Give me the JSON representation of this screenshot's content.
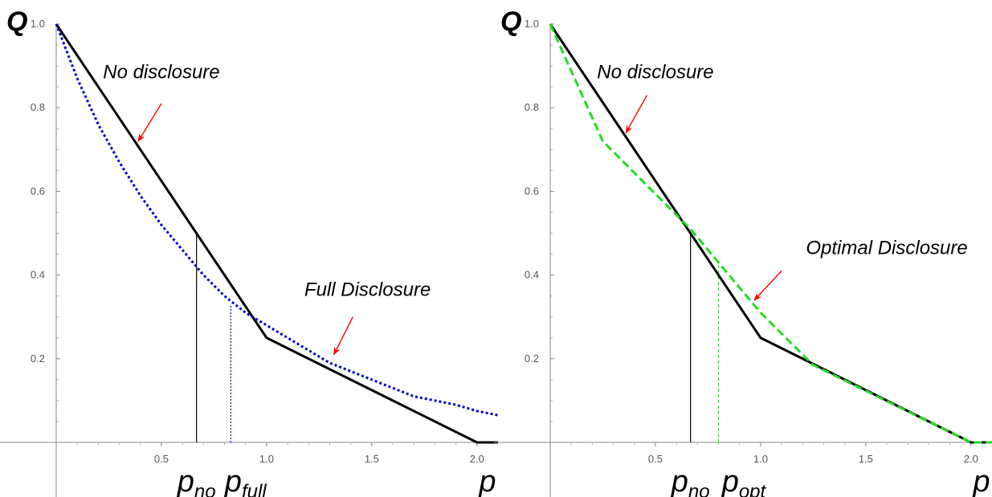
{
  "chart_data": [
    {
      "type": "line",
      "xlabel": "p",
      "ylabel": "Q",
      "xlim": [
        0,
        2.1
      ],
      "ylim": [
        -0.11,
        1.0
      ],
      "x_ticks": [
        0.5,
        1.0,
        1.5,
        2.0
      ],
      "x_tick_labels": [
        "0.5",
        "1.0",
        "1.5",
        "2.0"
      ],
      "y_ticks": [
        0.2,
        0.4,
        0.6,
        0.8,
        1.0
      ],
      "y_tick_labels": [
        "0.2",
        "0.4",
        "0.6",
        "0.8",
        "1.0"
      ],
      "grid": false,
      "series": [
        {
          "name": "No disclosure",
          "style": "solid",
          "color": "#000000",
          "x": [
            0,
            1.0,
            2.0,
            2.1
          ],
          "y": [
            1.0,
            0.25,
            0.0,
            0.0
          ]
        },
        {
          "name": "Full Disclosure",
          "style": "dotted",
          "color": "#0000cc",
          "x": [
            0,
            0.1,
            0.2,
            0.3,
            0.4,
            0.5,
            0.6,
            0.7,
            0.8,
            0.9,
            1.0,
            1.1,
            1.2,
            1.3,
            1.4,
            1.5,
            1.6,
            1.7,
            1.8,
            1.9,
            2.0,
            2.1
          ],
          "y": [
            1.0,
            0.87,
            0.76,
            0.67,
            0.59,
            0.52,
            0.46,
            0.4,
            0.35,
            0.31,
            0.28,
            0.25,
            0.22,
            0.19,
            0.17,
            0.15,
            0.13,
            0.11,
            0.1,
            0.09,
            0.075,
            0.065
          ]
        }
      ],
      "vlines": [
        {
          "label": "p_no",
          "x": 0.667,
          "y_top": 0.5,
          "color": "#000000",
          "style": "solid"
        },
        {
          "label": "p_full",
          "x": 0.83,
          "y_top": 0.33,
          "color": "#0000cc",
          "style": "dotted"
        }
      ],
      "marker_labels": [
        {
          "main": "p",
          "sub": "no",
          "x": 0.667
        },
        {
          "main": "p",
          "sub": "full",
          "x": 0.9
        },
        {
          "main": "p",
          "sub": "",
          "x": 2.05
        }
      ],
      "annotations": [
        {
          "text": "No disclosure",
          "text_x": 0.5,
          "text_y": 0.87,
          "arrow_from": [
            0.5,
            0.81
          ],
          "arrow_to": [
            0.39,
            0.72
          ]
        },
        {
          "text": "Full Disclosure",
          "text_x": 1.48,
          "text_y": 0.35,
          "arrow_from": [
            1.41,
            0.3
          ],
          "arrow_to": [
            1.32,
            0.21
          ]
        }
      ]
    },
    {
      "type": "line",
      "xlabel": "p",
      "ylabel": "Q",
      "xlim": [
        0,
        2.1
      ],
      "ylim": [
        -0.11,
        1.0
      ],
      "x_ticks": [
        0.5,
        1.0,
        1.5,
        2.0
      ],
      "x_tick_labels": [
        "0.5",
        "1.0",
        "1.5",
        "2.0"
      ],
      "y_ticks": [
        0.2,
        0.4,
        0.6,
        0.8,
        1.0
      ],
      "y_tick_labels": [
        "0.2",
        "0.4",
        "0.6",
        "0.8",
        "1.0"
      ],
      "grid": false,
      "series": [
        {
          "name": "No disclosure",
          "style": "solid",
          "color": "#000000",
          "x": [
            0,
            1.0,
            2.0,
            2.1
          ],
          "y": [
            1.0,
            0.25,
            0.0,
            0.0
          ]
        },
        {
          "name": "Optimal Disclosure",
          "style": "dashed",
          "color": "#22dd22",
          "x": [
            0,
            0.25,
            0.667,
            1.0,
            1.25,
            2.0,
            2.1
          ],
          "y": [
            1.0,
            0.72,
            0.51,
            0.31,
            0.185,
            0.0,
            0.0
          ]
        }
      ],
      "vlines": [
        {
          "label": "p_no",
          "x": 0.667,
          "y_top": 0.5,
          "color": "#000000",
          "style": "solid"
        },
        {
          "label": "p_opt",
          "x": 0.8,
          "y_top": 0.43,
          "color": "#22dd22",
          "style": "dashed"
        }
      ],
      "marker_labels": [
        {
          "main": "p",
          "sub": "no",
          "x": 0.667
        },
        {
          "main": "p",
          "sub": "opt",
          "x": 0.92
        },
        {
          "main": "p",
          "sub": "",
          "x": 2.05
        }
      ],
      "annotations": [
        {
          "text": "No disclosure",
          "text_x": 0.5,
          "text_y": 0.87,
          "arrow_from": [
            0.46,
            0.83
          ],
          "arrow_to": [
            0.36,
            0.74
          ]
        },
        {
          "text": "Optimal Disclosure",
          "text_x": 1.6,
          "text_y": 0.45,
          "arrow_from": [
            1.1,
            0.41
          ],
          "arrow_to": [
            0.97,
            0.34
          ]
        }
      ]
    }
  ]
}
